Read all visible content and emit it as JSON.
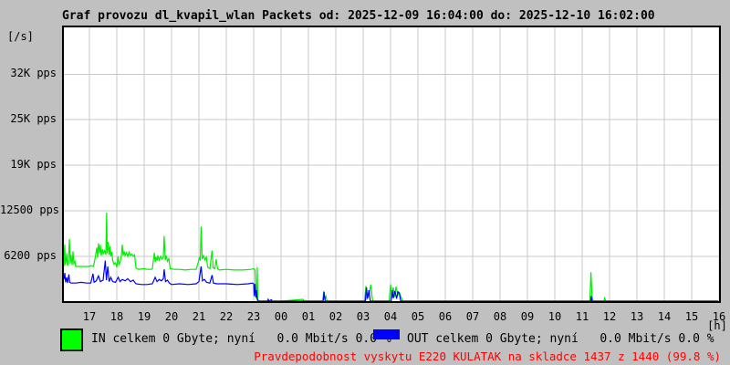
{
  "header": {
    "title": "Graf provozu dl_kvapil_wlan Packets od: 2025-12-09 16:04:00 do: 2025-12-10 16:02:00"
  },
  "y_axis": {
    "unit": "[/s]",
    "ticks": [
      {
        "label": "32K pps",
        "value": 31400
      },
      {
        "label": "25K pps",
        "value": 25100
      },
      {
        "label": "19K pps",
        "value": 18800
      },
      {
        "label": "12500 pps",
        "value": 12500
      },
      {
        "label": "6200 pps",
        "value": 6200
      }
    ]
  },
  "x_axis": {
    "unit": "[h]",
    "ticks": [
      "17",
      "18",
      "19",
      "20",
      "21",
      "22",
      "23",
      "00",
      "01",
      "02",
      "03",
      "04",
      "05",
      "06",
      "07",
      "08",
      "09",
      "10",
      "11",
      "12",
      "13",
      "14",
      "15",
      "16"
    ]
  },
  "legend": {
    "in_label": "IN celkem 0 Gbyte; nyní   0.0 Mbit/s 0.0 %",
    "out_label": "OUT celkem 0 Gbyte; nyní   0.0 Mbit/s 0.0 %"
  },
  "status": {
    "text": "Pravdepodobnost vyskytu E220 KULATAK na skladce 1437 z 1440 (99.8 %)"
  },
  "colors": {
    "in": "#00ee00",
    "in_legend": "#00ff00",
    "out": "#0000ff",
    "background": "#c0c0c0",
    "plot_background": "#ffffff",
    "grid": "#c8c8c8",
    "status_text": "#ff0000",
    "border": "#000000"
  },
  "chart_data": {
    "type": "line",
    "title": "Graf provozu dl_kvapil_wlan Packets od: 2025-12-09 16:04:00 do: 2025-12-10 16:02:00",
    "xlabel": "[h]",
    "ylabel": "[/s]",
    "x_unit": "hour of day, 16:04 to 16:02 next day",
    "y_unit": "packets per second",
    "ylim": [
      0,
      37900
    ],
    "x_hours_range": [
      16.07,
      40.03
    ],
    "grid": true,
    "legend_position": "bottom",
    "y_gridline_values": [
      31400,
      25100,
      18800,
      12500,
      6200
    ],
    "series": [
      {
        "name": "IN",
        "color_key": "in",
        "points": [
          [
            16.07,
            4800
          ],
          [
            16.08,
            6500
          ],
          [
            16.1,
            7800
          ],
          [
            16.12,
            5000
          ],
          [
            16.15,
            5600
          ],
          [
            16.17,
            6600
          ],
          [
            16.2,
            4900
          ],
          [
            16.23,
            5400
          ],
          [
            16.27,
            8600
          ],
          [
            16.3,
            5200
          ],
          [
            16.33,
            6400
          ],
          [
            16.37,
            5000
          ],
          [
            16.4,
            6900
          ],
          [
            16.43,
            5200
          ],
          [
            16.47,
            5500
          ],
          [
            16.5,
            4800
          ],
          [
            16.55,
            4800
          ],
          [
            17.0,
            4800
          ],
          [
            17.05,
            4900
          ],
          [
            17.15,
            4800
          ],
          [
            17.22,
            6200
          ],
          [
            17.27,
            7400
          ],
          [
            17.3,
            6000
          ],
          [
            17.33,
            8000
          ],
          [
            17.37,
            6600
          ],
          [
            17.4,
            7800
          ],
          [
            17.43,
            6300
          ],
          [
            17.47,
            7200
          ],
          [
            17.5,
            6500
          ],
          [
            17.55,
            7000
          ],
          [
            17.6,
            6400
          ],
          [
            17.63,
            12250
          ],
          [
            17.65,
            6600
          ],
          [
            17.68,
            8200
          ],
          [
            17.72,
            6400
          ],
          [
            17.75,
            7600
          ],
          [
            17.78,
            6200
          ],
          [
            17.82,
            6800
          ],
          [
            17.85,
            5600
          ],
          [
            17.9,
            5100
          ],
          [
            17.95,
            5300
          ],
          [
            18.0,
            4700
          ],
          [
            18.05,
            6200
          ],
          [
            18.08,
            5000
          ],
          [
            18.12,
            5400
          ],
          [
            18.17,
            6400
          ],
          [
            18.2,
            7800
          ],
          [
            18.23,
            6300
          ],
          [
            18.27,
            6900
          ],
          [
            18.3,
            6300
          ],
          [
            18.35,
            6700
          ],
          [
            18.4,
            6200
          ],
          [
            18.45,
            6800
          ],
          [
            18.5,
            6300
          ],
          [
            18.55,
            6500
          ],
          [
            18.6,
            6200
          ],
          [
            18.65,
            6400
          ],
          [
            18.7,
            4600
          ],
          [
            18.8,
            4400
          ],
          [
            19.0,
            4500
          ],
          [
            19.1,
            4400
          ],
          [
            19.25,
            4400
          ],
          [
            19.3,
            4500
          ],
          [
            19.37,
            6700
          ],
          [
            19.4,
            5400
          ],
          [
            19.43,
            6100
          ],
          [
            19.47,
            5600
          ],
          [
            19.5,
            6300
          ],
          [
            19.55,
            5700
          ],
          [
            19.6,
            6200
          ],
          [
            19.65,
            5800
          ],
          [
            19.7,
            6100
          ],
          [
            19.73,
            9000
          ],
          [
            19.77,
            5700
          ],
          [
            19.8,
            6300
          ],
          [
            19.85,
            5500
          ],
          [
            19.9,
            5900
          ],
          [
            19.95,
            4500
          ],
          [
            20.1,
            4400
          ],
          [
            20.3,
            4400
          ],
          [
            20.5,
            4300
          ],
          [
            20.7,
            4400
          ],
          [
            20.9,
            4400
          ],
          [
            20.97,
            5300
          ],
          [
            21.02,
            6100
          ],
          [
            21.05,
            5600
          ],
          [
            21.08,
            10300
          ],
          [
            21.12,
            5800
          ],
          [
            21.17,
            6300
          ],
          [
            21.22,
            5700
          ],
          [
            21.27,
            6100
          ],
          [
            21.32,
            4700
          ],
          [
            21.4,
            4500
          ],
          [
            21.48,
            7000
          ],
          [
            21.52,
            4600
          ],
          [
            21.58,
            4500
          ],
          [
            21.63,
            5800
          ],
          [
            21.68,
            4500
          ],
          [
            21.75,
            4300
          ],
          [
            22.0,
            4400
          ],
          [
            22.3,
            4300
          ],
          [
            22.6,
            4300
          ],
          [
            22.9,
            4400
          ],
          [
            23.0,
            4500
          ],
          [
            23.05,
            4300
          ],
          [
            23.08,
            900
          ],
          [
            23.11,
            300
          ],
          [
            23.13,
            4700
          ],
          [
            23.15,
            300
          ],
          [
            23.18,
            0
          ],
          [
            24.0,
            0
          ],
          [
            24.8,
            250
          ],
          [
            24.84,
            0
          ],
          [
            25.52,
            0
          ],
          [
            25.56,
            1400
          ],
          [
            25.6,
            250
          ],
          [
            25.64,
            700
          ],
          [
            25.68,
            0
          ],
          [
            27.05,
            0
          ],
          [
            27.1,
            2100
          ],
          [
            27.14,
            350
          ],
          [
            27.22,
            900
          ],
          [
            27.28,
            2300
          ],
          [
            27.33,
            400
          ],
          [
            27.36,
            0
          ],
          [
            27.95,
            0
          ],
          [
            28.0,
            2300
          ],
          [
            28.05,
            450
          ],
          [
            28.1,
            1900
          ],
          [
            28.14,
            550
          ],
          [
            28.2,
            2000
          ],
          [
            28.26,
            800
          ],
          [
            28.32,
            1200
          ],
          [
            28.38,
            600
          ],
          [
            28.44,
            0
          ],
          [
            35.28,
            0
          ],
          [
            35.32,
            4000
          ],
          [
            35.36,
            700
          ],
          [
            35.4,
            0
          ],
          [
            35.8,
            0
          ],
          [
            35.82,
            400
          ],
          [
            35.86,
            0
          ],
          [
            39.97,
            0
          ]
        ]
      },
      {
        "name": "OUT",
        "color_key": "out",
        "points": [
          [
            16.07,
            3000
          ],
          [
            16.1,
            3900
          ],
          [
            16.13,
            2600
          ],
          [
            16.17,
            3300
          ],
          [
            16.2,
            2500
          ],
          [
            16.25,
            3700
          ],
          [
            16.28,
            2600
          ],
          [
            16.33,
            2500
          ],
          [
            16.5,
            2500
          ],
          [
            16.7,
            2600
          ],
          [
            16.9,
            2500
          ],
          [
            17.05,
            2500
          ],
          [
            17.13,
            3800
          ],
          [
            17.17,
            2600
          ],
          [
            17.25,
            2800
          ],
          [
            17.33,
            3500
          ],
          [
            17.4,
            2700
          ],
          [
            17.5,
            2900
          ],
          [
            17.58,
            5600
          ],
          [
            17.62,
            2900
          ],
          [
            17.67,
            4800
          ],
          [
            17.72,
            2700
          ],
          [
            17.78,
            3300
          ],
          [
            17.85,
            2700
          ],
          [
            17.95,
            2600
          ],
          [
            18.05,
            3300
          ],
          [
            18.12,
            2700
          ],
          [
            18.2,
            3000
          ],
          [
            18.3,
            2800
          ],
          [
            18.4,
            3100
          ],
          [
            18.5,
            2700
          ],
          [
            18.6,
            2900
          ],
          [
            18.7,
            2400
          ],
          [
            18.9,
            2300
          ],
          [
            19.1,
            2300
          ],
          [
            19.3,
            2400
          ],
          [
            19.4,
            3300
          ],
          [
            19.47,
            2700
          ],
          [
            19.55,
            3000
          ],
          [
            19.63,
            2800
          ],
          [
            19.7,
            3100
          ],
          [
            19.73,
            4400
          ],
          [
            19.78,
            2700
          ],
          [
            19.85,
            2900
          ],
          [
            19.92,
            2500
          ],
          [
            20.0,
            2300
          ],
          [
            20.3,
            2400
          ],
          [
            20.6,
            2300
          ],
          [
            20.9,
            2400
          ],
          [
            21.0,
            2700
          ],
          [
            21.08,
            4800
          ],
          [
            21.13,
            2800
          ],
          [
            21.2,
            3000
          ],
          [
            21.28,
            2600
          ],
          [
            21.4,
            2500
          ],
          [
            21.48,
            3600
          ],
          [
            21.53,
            2500
          ],
          [
            21.65,
            2400
          ],
          [
            22.0,
            2400
          ],
          [
            22.4,
            2300
          ],
          [
            22.8,
            2400
          ],
          [
            22.95,
            2500
          ],
          [
            23.0,
            2400
          ],
          [
            23.02,
            700
          ],
          [
            23.05,
            2400
          ],
          [
            23.08,
            500
          ],
          [
            23.1,
            1500
          ],
          [
            23.13,
            250
          ],
          [
            23.16,
            0
          ],
          [
            23.5,
            0
          ],
          [
            23.53,
            250
          ],
          [
            23.56,
            0
          ],
          [
            23.65,
            200
          ],
          [
            23.68,
            0
          ],
          [
            25.54,
            0
          ],
          [
            25.57,
            1260
          ],
          [
            25.61,
            0
          ],
          [
            27.08,
            0
          ],
          [
            27.12,
            1900
          ],
          [
            27.16,
            350
          ],
          [
            27.21,
            1500
          ],
          [
            27.26,
            0
          ],
          [
            28.02,
            0
          ],
          [
            28.06,
            1500
          ],
          [
            28.1,
            400
          ],
          [
            28.16,
            1400
          ],
          [
            28.22,
            350
          ],
          [
            28.27,
            1300
          ],
          [
            28.32,
            1100
          ],
          [
            28.37,
            0
          ],
          [
            35.31,
            0
          ],
          [
            35.33,
            700
          ],
          [
            35.36,
            0
          ],
          [
            39.97,
            0
          ]
        ]
      }
    ]
  }
}
